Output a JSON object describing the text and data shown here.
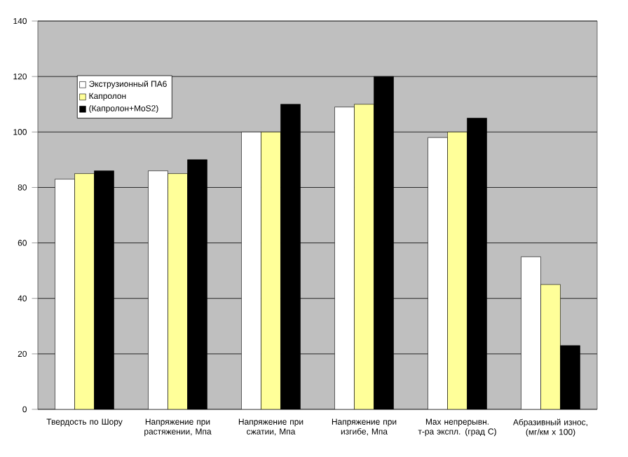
{
  "chart_data": {
    "type": "bar",
    "categories": [
      "Твердость по Шору",
      "Напряжение при растяжении, Мпа",
      "Напряжение при сжатии, Мпа",
      "Напряжение при изгибе, Мпа",
      "Max непрерывн. т-ра экспл. (град С)",
      "Абразивный износ, (мг/км x 100)"
    ],
    "series": [
      {
        "name": "Экструзионный ПА6",
        "color": "#ffffff",
        "values": [
          83,
          86,
          100,
          109,
          98,
          55
        ]
      },
      {
        "name": "Капролон",
        "color": "#ffff99",
        "values": [
          85,
          85,
          100,
          110,
          100,
          45
        ]
      },
      {
        "name": "(Капролон+MoS2)",
        "color": "#000000",
        "values": [
          86,
          90,
          110,
          120,
          105,
          23
        ]
      }
    ],
    "ylim": [
      0,
      140
    ],
    "yticks": [
      0,
      20,
      40,
      60,
      80,
      100,
      120,
      140
    ],
    "grid": "y",
    "legend": "top left"
  }
}
